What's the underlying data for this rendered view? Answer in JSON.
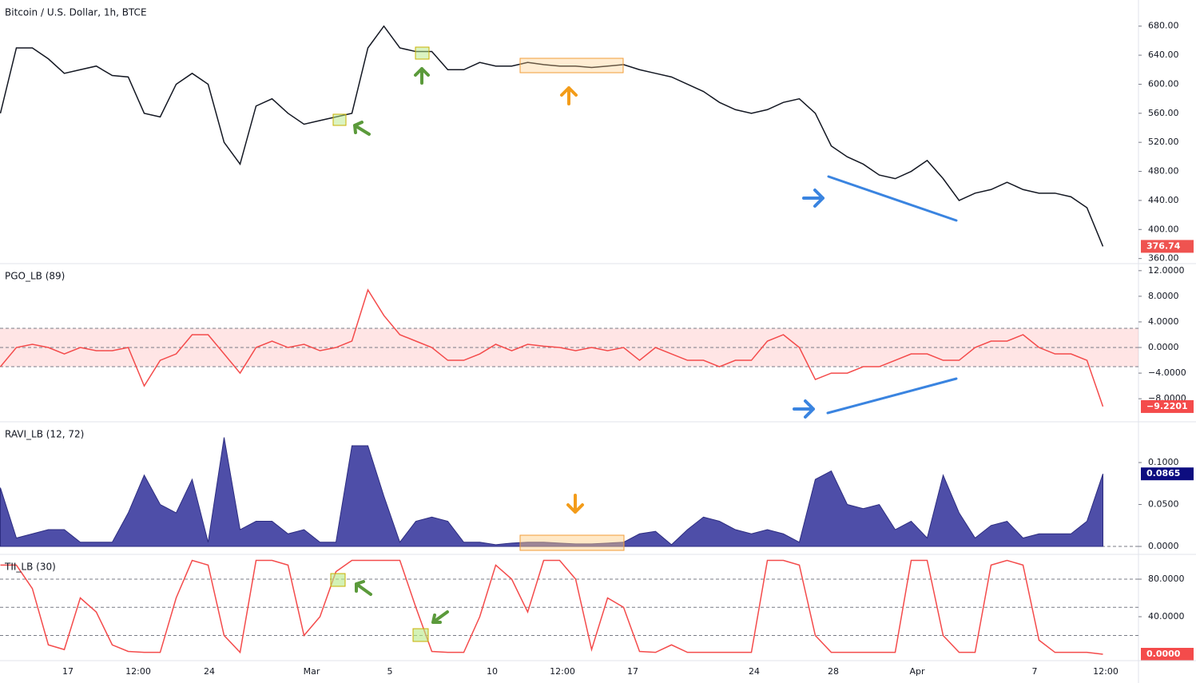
{
  "chart_data": [
    {
      "type": "line",
      "title": "Bitcoin / U.S. Dollar, 1h, BTCE",
      "color": "#131722",
      "values": [
        560,
        650,
        650,
        635,
        615,
        620,
        625,
        612,
        610,
        560,
        555,
        600,
        615,
        600,
        520,
        490,
        570,
        580,
        560,
        545,
        550,
        555,
        560,
        650,
        680,
        650,
        645,
        645,
        620,
        620,
        630,
        625,
        625,
        630,
        627,
        625,
        625,
        623,
        625,
        627,
        620,
        615,
        610,
        600,
        590,
        575,
        565,
        560,
        565,
        575,
        580,
        560,
        515,
        500,
        490,
        475,
        470,
        480,
        495,
        470,
        440,
        450,
        455,
        465,
        455,
        450,
        450,
        445,
        430,
        376.74
      ],
      "ylim": [
        353,
        716
      ],
      "yticks": [
        {
          "value": 360,
          "label": "360.00"
        },
        {
          "value": 400,
          "label": "400.00"
        },
        {
          "value": 440,
          "label": "440.00"
        },
        {
          "value": 480,
          "label": "480.00"
        },
        {
          "value": 520,
          "label": "520.00"
        },
        {
          "value": 560,
          "label": "560.00"
        },
        {
          "value": 600,
          "label": "600.00"
        },
        {
          "value": 640,
          "label": "640.00"
        },
        {
          "value": 680,
          "label": "680.00"
        }
      ],
      "last_color": "#ef5350"
    },
    {
      "type": "line",
      "title": "PGO_LB (89)",
      "color": "#f44b4b",
      "values": [
        -3,
        0,
        0.5,
        0,
        -1,
        0,
        -0.5,
        -0.5,
        0,
        -6,
        -2,
        -1,
        2,
        2,
        -1,
        -4,
        0,
        1,
        0,
        0.5,
        -0.5,
        0,
        1,
        9,
        5,
        2,
        1,
        0,
        -2,
        -2,
        -1,
        0.5,
        -0.5,
        0.5,
        0.2,
        0,
        -0.5,
        0,
        -0.5,
        0,
        -2,
        0,
        -1,
        -2,
        -2,
        -3,
        -2,
        -2,
        1,
        2,
        0,
        -5,
        -4,
        -4,
        -3,
        -3,
        -2,
        -1,
        -1,
        -2,
        -2,
        0,
        1,
        1,
        2,
        0,
        -1,
        -1,
        -2,
        -9.2201
      ],
      "ylim": [
        -11.6,
        13.1
      ],
      "yticks": [
        {
          "value": -8,
          "label": "−8.0000"
        },
        {
          "value": -4,
          "label": "−4.0000"
        },
        {
          "value": 0,
          "label": "0.0000"
        },
        {
          "value": 4,
          "label": "4.0000"
        },
        {
          "value": 8,
          "label": "8.0000"
        },
        {
          "value": 12,
          "label": "12.0000"
        }
      ],
      "hlines": [
        3,
        0,
        -3
      ],
      "band": [
        -3,
        3
      ],
      "last_color": "#f44b4b",
      "last_label": "−9.2201"
    },
    {
      "type": "area",
      "title": "RAVI_LB (12, 72)",
      "color": "#4e4ea8",
      "values": [
        0.07,
        0.01,
        0.015,
        0.02,
        0.02,
        0.005,
        0.005,
        0.005,
        0.04,
        0.085,
        0.05,
        0.04,
        0.08,
        0.005,
        0.13,
        0.02,
        0.03,
        0.03,
        0.015,
        0.02,
        0.005,
        0.005,
        0.12,
        0.12,
        0.06,
        0.005,
        0.03,
        0.035,
        0.03,
        0.005,
        0.005,
        0.002,
        0.004,
        0.005,
        0.005,
        0.004,
        0.003,
        0.003,
        0.004,
        0.005,
        0.015,
        0.018,
        0.002,
        0.02,
        0.035,
        0.03,
        0.02,
        0.015,
        0.02,
        0.015,
        0.005,
        0.08,
        0.09,
        0.05,
        0.045,
        0.05,
        0.02,
        0.03,
        0.01,
        0.085,
        0.04,
        0.01,
        0.025,
        0.03,
        0.01,
        0.015,
        0.015,
        0.015,
        0.03,
        0.0865
      ],
      "ylim": [
        -0.0095,
        0.1486
      ],
      "yticks": [
        {
          "value": 0,
          "label": "0.0000"
        },
        {
          "value": 0.05,
          "label": "0.0500"
        },
        {
          "value": 0.1,
          "label": "0.1000"
        }
      ],
      "hlines": [
        0
      ],
      "last_color": "#0d0d80"
    },
    {
      "type": "line",
      "title": "TII_LB (30)",
      "color": "#f44b4b",
      "values": [
        95,
        95,
        70,
        10,
        5,
        60,
        45,
        10,
        3,
        2,
        2,
        60,
        100,
        95,
        20,
        2,
        100,
        100,
        95,
        20,
        40,
        88,
        100,
        100,
        100,
        100,
        50,
        3,
        2,
        2,
        40,
        95,
        80,
        45,
        100,
        100,
        80,
        5,
        60,
        50,
        3,
        2,
        10,
        2,
        2,
        2,
        2,
        2,
        100,
        100,
        95,
        20,
        2,
        2,
        2,
        2,
        2,
        100,
        100,
        20,
        2,
        2,
        95,
        100,
        95,
        15,
        2,
        2,
        2,
        0
      ],
      "ylim": [
        -6.8,
        106.4
      ],
      "yticks": [
        {
          "value": 40,
          "label": "40.0000"
        },
        {
          "value": 80,
          "label": "80.0000"
        }
      ],
      "hlines": [
        80,
        50,
        20
      ],
      "last_color": "#f44b4b",
      "last_label": "0.0000"
    }
  ],
  "x_axis_labels": [
    "17",
    "12:00",
    "24",
    "Mar",
    "5",
    "10",
    "12:00",
    "17",
    "24",
    "28",
    "Apr",
    "7",
    "12:00"
  ]
}
